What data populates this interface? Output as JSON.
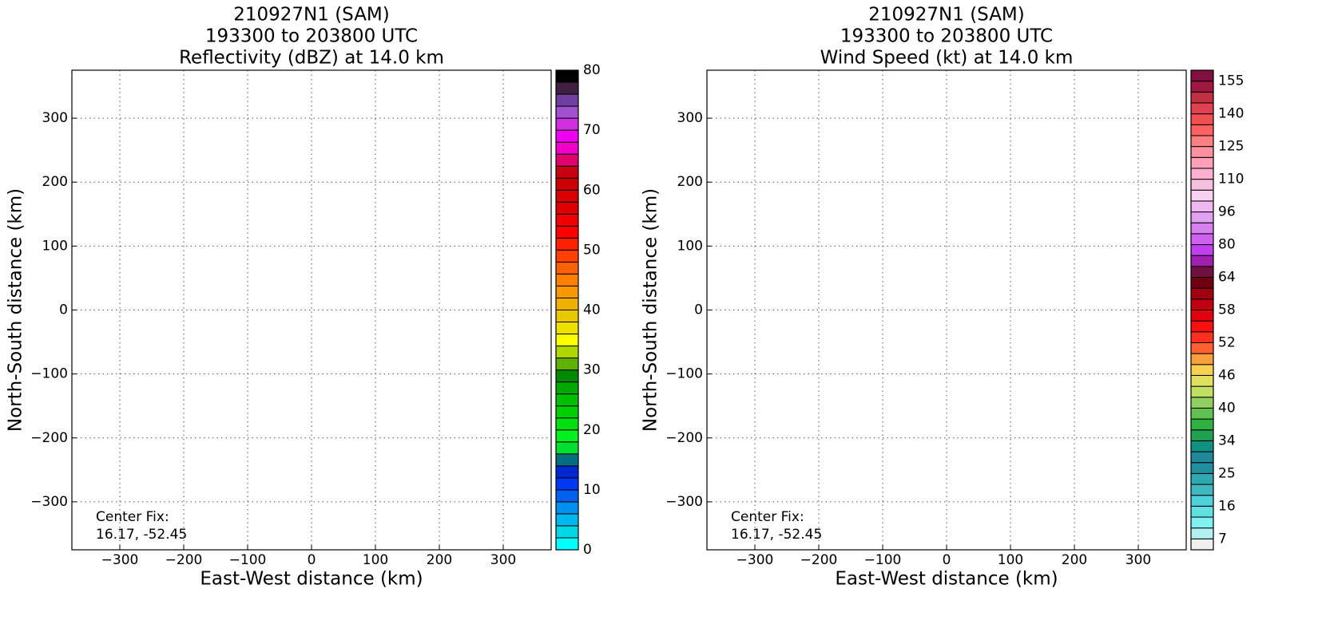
{
  "chart_data": [
    {
      "type": "contourf",
      "title": [
        "210927N1 (SAM)",
        "193300 to 203800 UTC",
        "Reflectivity (dBZ) at 14.0 km"
      ],
      "xlabel": "East-West distance (km)",
      "ylabel": "North-South distance (km)",
      "annotation": [
        "Center Fix:",
        "16.17, -52.45"
      ],
      "xlim": [
        -375,
        375
      ],
      "ylim": [
        -375,
        375
      ],
      "xticks": [
        {
          "value": -300,
          "label": "−300"
        },
        {
          "value": -200,
          "label": "−200"
        },
        {
          "value": -100,
          "label": "−100"
        },
        0,
        100,
        200,
        300
      ],
      "yticks": [
        {
          "value": -300,
          "label": "−300"
        },
        {
          "value": -200,
          "label": "−200"
        },
        {
          "value": -100,
          "label": "−100"
        },
        0,
        100,
        200,
        300
      ],
      "grid": true,
      "colorbar": {
        "boundaries": [
          0,
          2,
          4,
          6,
          8,
          10,
          12,
          14,
          16,
          18,
          20,
          22,
          24,
          26,
          28,
          30,
          32,
          34,
          36,
          38,
          40,
          42,
          44,
          46,
          48,
          50,
          52,
          54,
          56,
          58,
          60,
          62,
          64,
          66,
          68,
          70,
          72,
          74,
          76,
          78,
          80
        ],
        "colors": [
          "#00ffff",
          "#00d8e8",
          "#00b8f0",
          "#0090f0",
          "#0060f0",
          "#0038f8",
          "#0028d0",
          "#007080",
          "#00e030",
          "#00f020",
          "#00e010",
          "#00d000",
          "#00c000",
          "#00a800",
          "#008800",
          "#60b000",
          "#b0d800",
          "#ffff00",
          "#f0e000",
          "#e8c800",
          "#f0b000",
          "#f89800",
          "#ff8000",
          "#ff6000",
          "#ff4000",
          "#ff2000",
          "#ff0000",
          "#f00000",
          "#e00000",
          "#d80000",
          "#cc0000",
          "#c80010",
          "#e00070",
          "#f000c8",
          "#f000f0",
          "#d030e0",
          "#a050d0",
          "#7040a0",
          "#402040",
          "#000000"
        ],
        "ticks": [
          0,
          10,
          20,
          30,
          40,
          50,
          60,
          70,
          80
        ]
      }
    },
    {
      "type": "contourf",
      "title": [
        "210927N1 (SAM)",
        "193300 to 203800 UTC",
        "Wind Speed (kt) at 14.0 km"
      ],
      "xlabel": "East-West distance (km)",
      "ylabel": "North-South distance (km)",
      "annotation": [
        "Center Fix:",
        "16.17, -52.45"
      ],
      "xlim": [
        -375,
        375
      ],
      "ylim": [
        -375,
        375
      ],
      "xticks": [
        {
          "value": -300,
          "label": "−300"
        },
        {
          "value": -200,
          "label": "−200"
        },
        {
          "value": -100,
          "label": "−100"
        },
        0,
        100,
        200,
        300
      ],
      "yticks": [
        {
          "value": -300,
          "label": "−300"
        },
        {
          "value": -200,
          "label": "−200"
        },
        {
          "value": -100,
          "label": "−100"
        },
        0,
        100,
        200,
        300
      ],
      "grid": true,
      "colorbar": {
        "boundaries": [
          4,
          7,
          10,
          13,
          16,
          19,
          22,
          25,
          28,
          31,
          34,
          36,
          38,
          40,
          42,
          44,
          46,
          48,
          50,
          52,
          54,
          56,
          58,
          60,
          62,
          64,
          69,
          75,
          80,
          85,
          91,
          96,
          101,
          105,
          110,
          115,
          120,
          125,
          130,
          135,
          140,
          145,
          150,
          155,
          160
        ],
        "colors": [
          "#f0f0f0",
          "#b0f0f0",
          "#80f0f0",
          "#60e0e0",
          "#50d0d8",
          "#40b8c0",
          "#30a8b0",
          "#2090a0",
          "#208898",
          "#109080",
          "#20a050",
          "#30b040",
          "#60c050",
          "#90d060",
          "#c0e060",
          "#e0e060",
          "#f8d050",
          "#f8a040",
          "#ff6030",
          "#ff3020",
          "#ff1010",
          "#e00010",
          "#c00010",
          "#a00010",
          "#700010",
          "#701040",
          "#a020b0",
          "#c040f0",
          "#d060f0",
          "#d880f0",
          "#e0a0f0",
          "#f0b8f0",
          "#f8d0f0",
          "#f8c0e0",
          "#ffb0d0",
          "#ffa0b8",
          "#ff90a0",
          "#ff8080",
          "#ff6060",
          "#f05050",
          "#e04050",
          "#c03040",
          "#a01840",
          "#801040"
        ],
        "ticks": [
          7,
          16,
          25,
          34,
          40,
          46,
          52,
          58,
          64,
          80,
          96,
          110,
          125,
          140,
          155
        ]
      }
    }
  ]
}
